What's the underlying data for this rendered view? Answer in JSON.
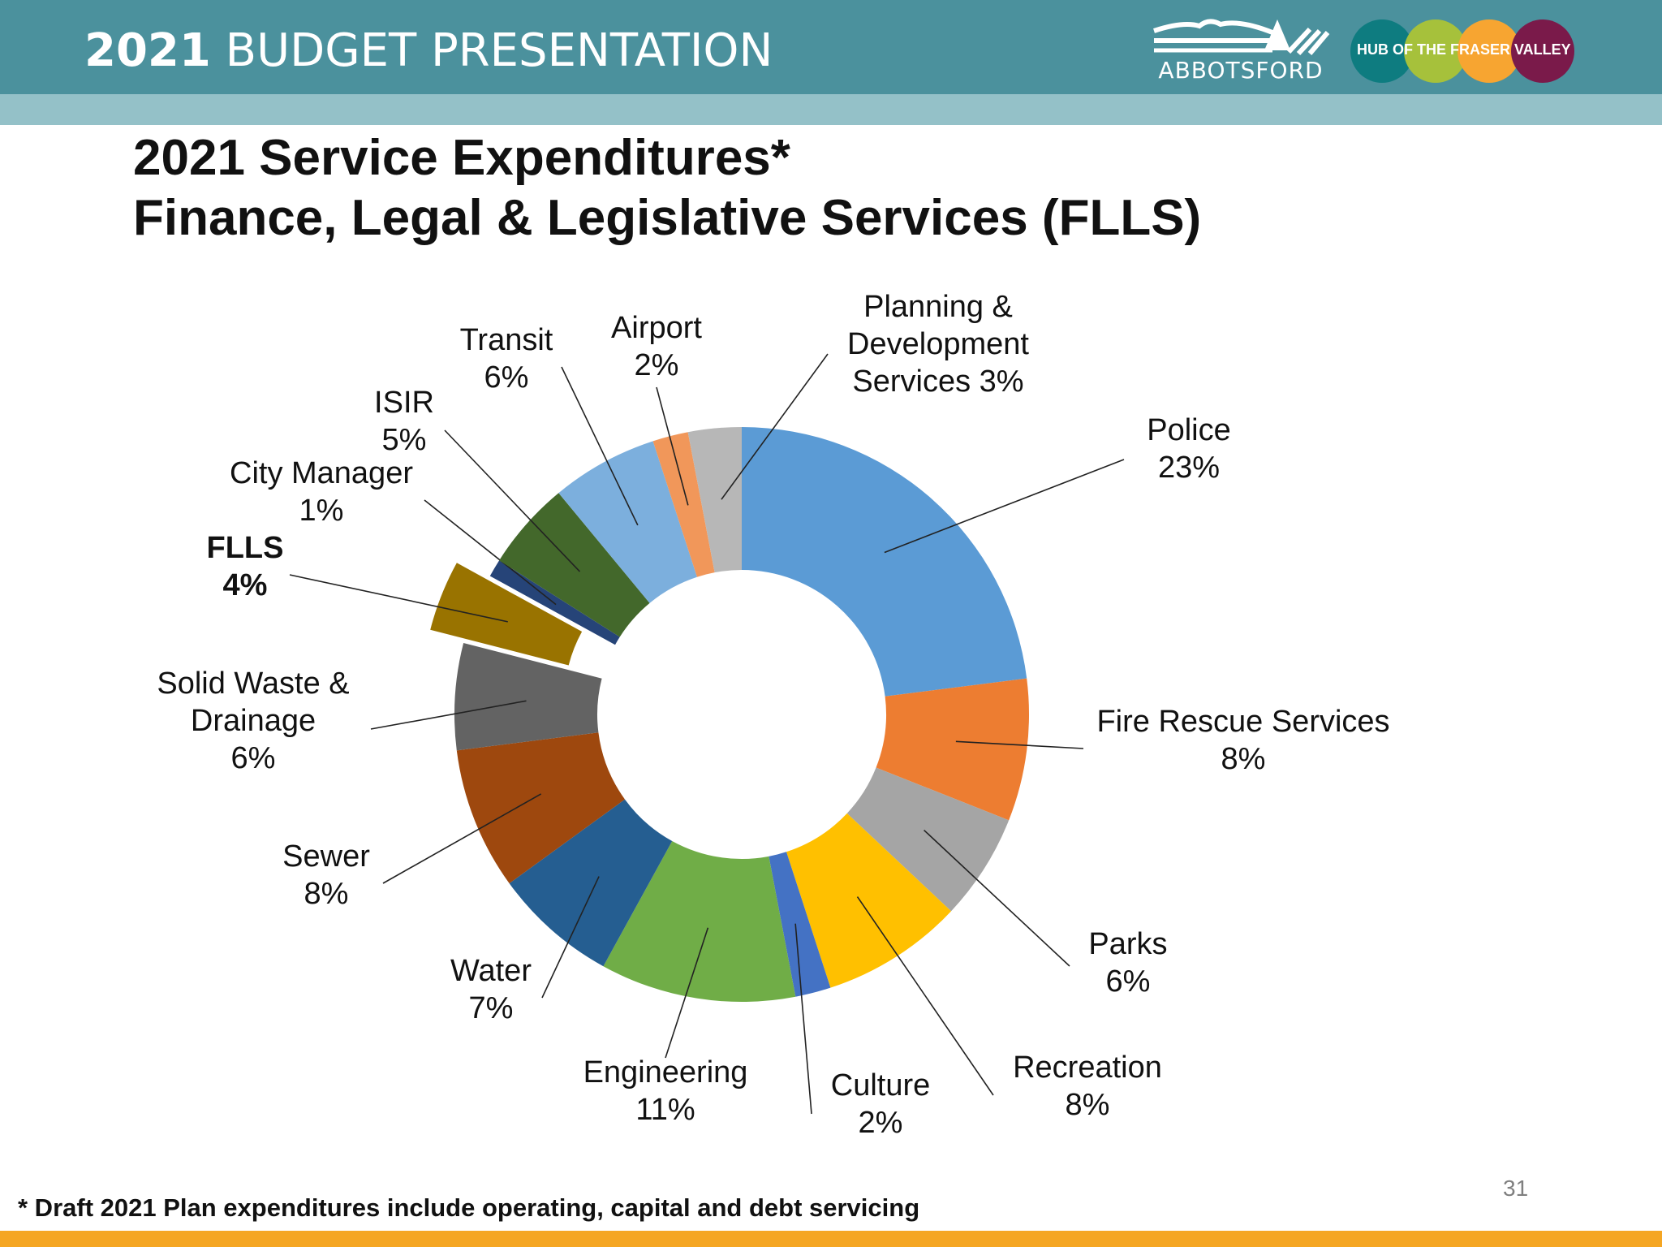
{
  "header": {
    "year": "2021",
    "title": "BUDGET PRESENTATION",
    "logo_text": "ABBOTSFORD",
    "hub_text": "HUB OF THE FRASER VALLEY"
  },
  "slide": {
    "title_line1": "2021 Service Expenditures*",
    "title_line2": "Finance, Legal & Legislative Services (FLLS)",
    "footnote": "* Draft 2021 Plan expenditures include operating, capital and debt servicing",
    "page_number": "31"
  },
  "colors": {
    "header_bar": "#4b919d",
    "sub_bar": "#94c1c8",
    "bottom_bar": "#f5a623",
    "hub_circles": [
      "#0e7c80",
      "#a6c13b",
      "#f7a531",
      "#7a1a4a"
    ]
  },
  "chart_data": {
    "type": "pie",
    "variant": "donut",
    "highlighted": "FLLS",
    "slices": [
      {
        "label": [
          "Police",
          "23%"
        ],
        "value": 23,
        "color": "#5b9bd5"
      },
      {
        "label": [
          "Fire Rescue Services",
          "8%"
        ],
        "value": 8,
        "color": "#ed7d31"
      },
      {
        "label": [
          "Parks",
          "6%"
        ],
        "value": 6,
        "color": "#a5a5a5"
      },
      {
        "label": [
          "Recreation",
          "8%"
        ],
        "value": 8,
        "color": "#ffc000"
      },
      {
        "label": [
          "Culture",
          "2%"
        ],
        "value": 2,
        "color": "#4472c4"
      },
      {
        "label": [
          "Engineering",
          "11%"
        ],
        "value": 11,
        "color": "#70ad47"
      },
      {
        "label": [
          "Water",
          "7%"
        ],
        "value": 7,
        "color": "#255e91"
      },
      {
        "label": [
          "Sewer",
          "8%"
        ],
        "value": 8,
        "color": "#9e480e"
      },
      {
        "label": [
          "Solid Waste &",
          "Drainage",
          "6%"
        ],
        "value": 6,
        "color": "#636363"
      },
      {
        "label": [
          "FLLS",
          "4%"
        ],
        "value": 4,
        "color": "#997300"
      },
      {
        "label": [
          "City Manager",
          "1%"
        ],
        "value": 1,
        "color": "#264478"
      },
      {
        "label": [
          "ISIR",
          "5%"
        ],
        "value": 5,
        "color": "#43682b"
      },
      {
        "label": [
          "Transit",
          "6%"
        ],
        "value": 6,
        "color": "#7cafdd"
      },
      {
        "label": [
          "Airport",
          "2%"
        ],
        "value": 2,
        "color": "#f1975a"
      },
      {
        "label": [
          "Planning &",
          "Development",
          "Services 3%"
        ],
        "value": 3,
        "color": "#b7b7b7"
      }
    ]
  }
}
